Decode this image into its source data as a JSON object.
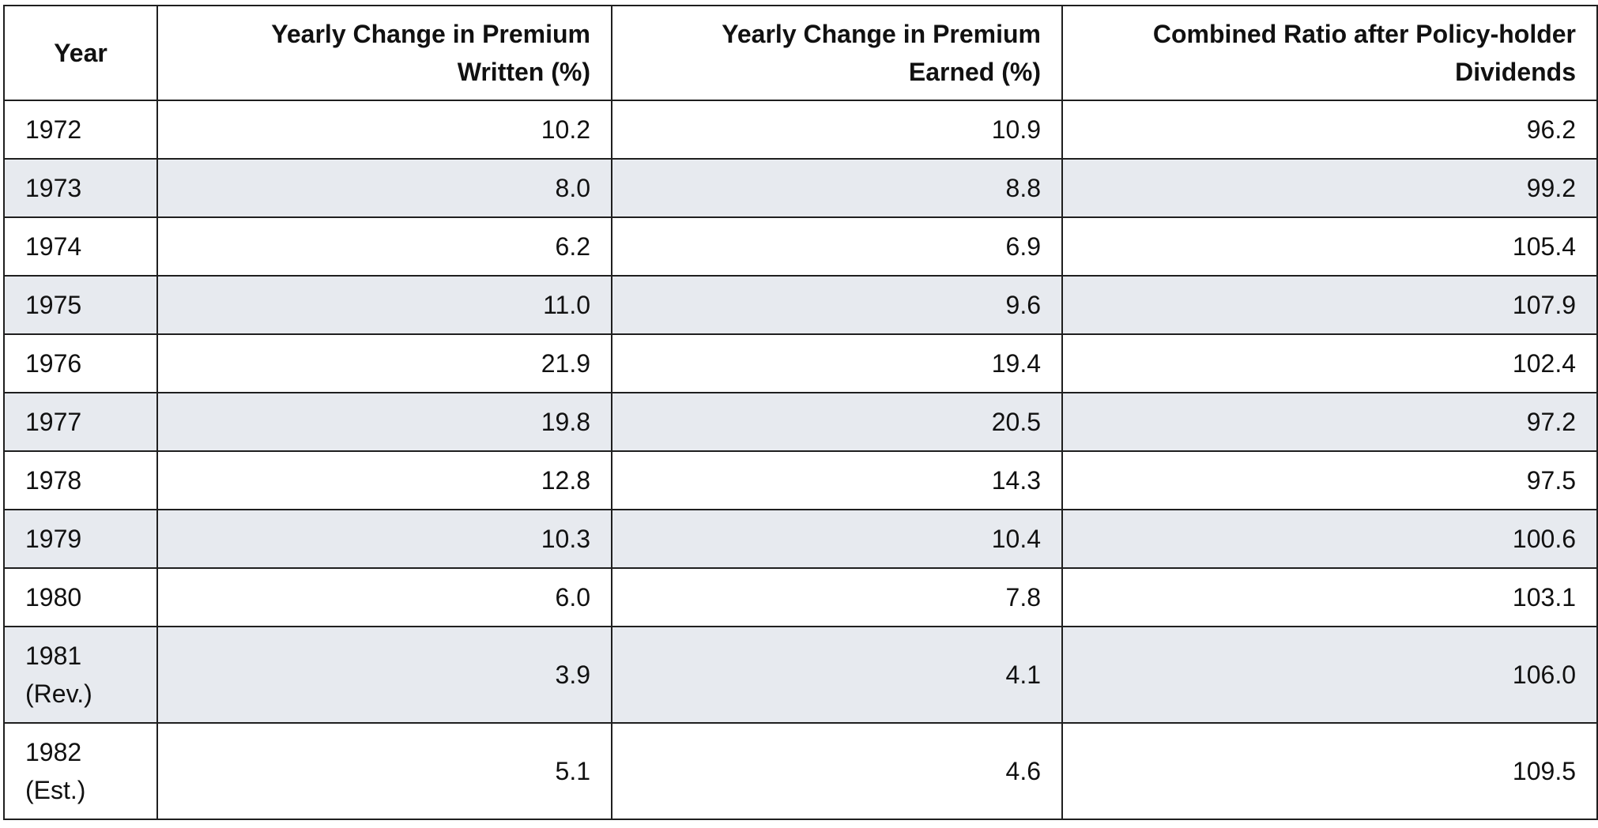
{
  "table": {
    "headers": {
      "year": "Year",
      "premium_written": "Yearly Change in Premium Written (%)",
      "premium_earned": "Yearly Change in Premium Earned (%)",
      "combined_ratio": "Combined Ratio after Policy-holder Dividends"
    },
    "rows": [
      {
        "year": "1972",
        "note": "",
        "written": "10.2",
        "earned": "10.9",
        "ratio": "96.2"
      },
      {
        "year": "1973",
        "note": "",
        "written": "8.0",
        "earned": "8.8",
        "ratio": "99.2"
      },
      {
        "year": "1974",
        "note": "",
        "written": "6.2",
        "earned": "6.9",
        "ratio": "105.4"
      },
      {
        "year": "1975",
        "note": "",
        "written": "11.0",
        "earned": "9.6",
        "ratio": "107.9"
      },
      {
        "year": "1976",
        "note": "",
        "written": "21.9",
        "earned": "19.4",
        "ratio": "102.4"
      },
      {
        "year": "1977",
        "note": "",
        "written": "19.8",
        "earned": "20.5",
        "ratio": "97.2"
      },
      {
        "year": "1978",
        "note": "",
        "written": "12.8",
        "earned": "14.3",
        "ratio": "97.5"
      },
      {
        "year": "1979",
        "note": "",
        "written": "10.3",
        "earned": "10.4",
        "ratio": "100.6"
      },
      {
        "year": "1980",
        "note": "",
        "written": "6.0",
        "earned": "7.8",
        "ratio": "103.1"
      },
      {
        "year": "1981",
        "note": "(Rev.)",
        "written": "3.9",
        "earned": "4.1",
        "ratio": "106.0"
      },
      {
        "year": "1982",
        "note": "(Est.)",
        "written": "5.1",
        "earned": "4.6",
        "ratio": "109.5"
      }
    ]
  }
}
